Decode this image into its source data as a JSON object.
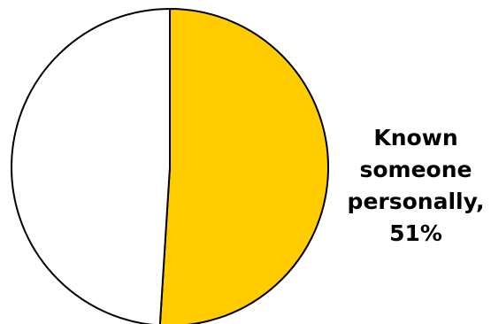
{
  "chart_data": {
    "type": "pie",
    "title": "",
    "slices": [
      {
        "label_lines": [
          "Known",
          "someone",
          "personally,",
          "51%"
        ],
        "value": 51,
        "color": "#FFCC00",
        "labeled": true
      },
      {
        "label_lines": [],
        "value": 49,
        "color": "#FFFFFF",
        "labeled": false
      }
    ],
    "legend": "none",
    "start": "top",
    "direction": "clockwise",
    "edge_color": "#000000"
  }
}
